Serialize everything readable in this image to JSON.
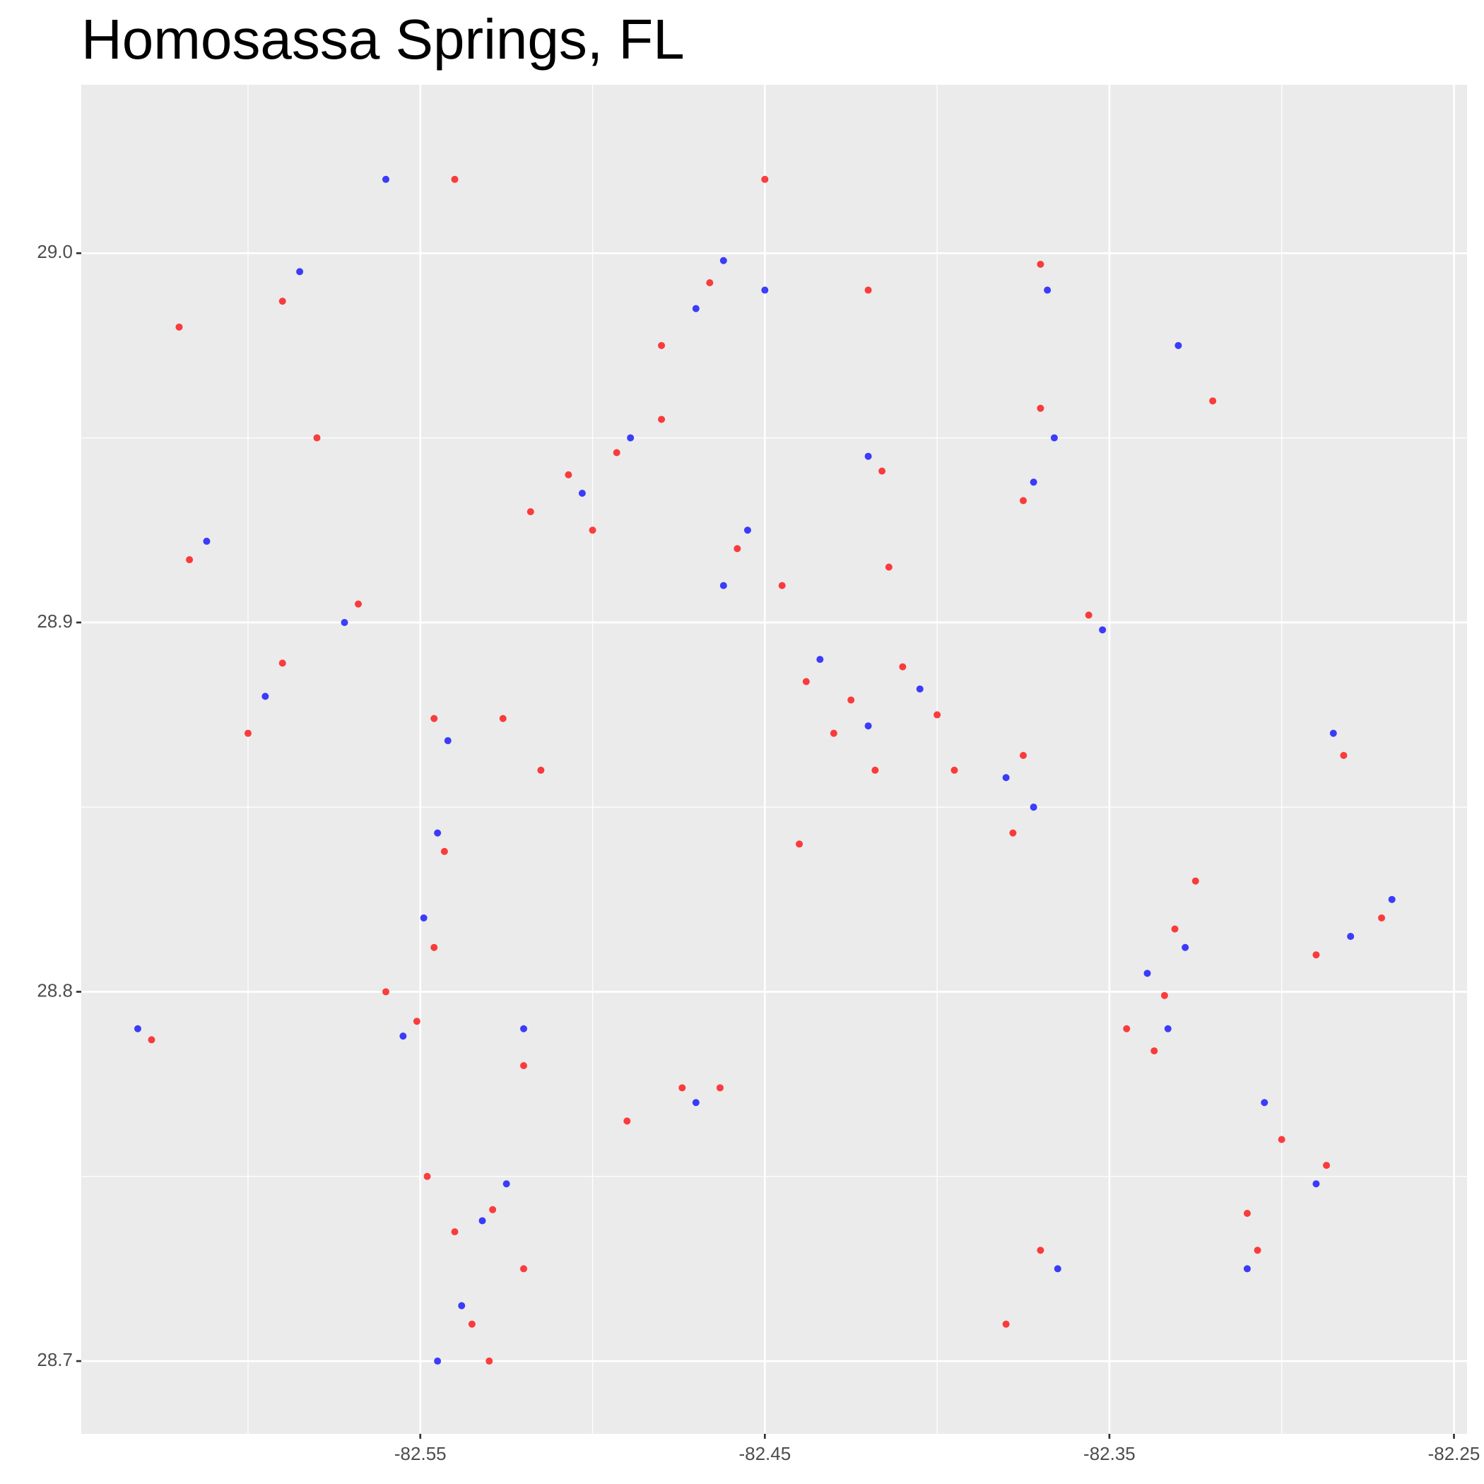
{
  "chart_data": {
    "type": "scatter",
    "title": "Homosassa Springs, FL",
    "xlim": [
      -82.6484,
      -82.2462
    ],
    "ylim": [
      28.6803,
      29.0456
    ],
    "xticks": [
      -82.55,
      -82.45,
      -82.35,
      -82.25
    ],
    "yticks": [
      {
        "value": 29,
        "label": "29.0"
      },
      28.9,
      28.8,
      28.7
    ],
    "x_minor_grid": [
      -82.6,
      -82.5,
      -82.4,
      -82.3
    ],
    "y_minor_grid": [
      28.95,
      28.85,
      28.75
    ],
    "grid": true,
    "series": [
      {
        "color": "#ff0000",
        "x": [
          -82.466,
          -82.48,
          -82.458,
          -82.445,
          -82.438,
          -82.425,
          -82.43,
          -82.41,
          -82.4,
          -82.418,
          -82.334,
          -82.331,
          -82.337,
          -82.345,
          -82.325,
          -82.529,
          -82.54,
          -82.535,
          -82.52,
          -82.548,
          -82.543,
          -82.546,
          -82.551,
          -82.56,
          -82.507,
          -82.493,
          -82.518,
          -82.5,
          -82.48,
          -82.59,
          -82.6,
          -82.628,
          -82.617,
          -82.59,
          -82.62,
          -82.375,
          -82.378,
          -82.37,
          -82.37,
          -82.375,
          -82.282,
          -82.271,
          -82.29,
          -82.287,
          -82.307,
          -82.37,
          -82.38,
          -82.474,
          -82.463,
          -82.49,
          -82.416,
          -82.414,
          -82.546,
          -82.526,
          -82.568,
          -82.356,
          -82.31,
          -82.3,
          -82.44,
          -82.52,
          -82.515,
          -82.45,
          -82.54,
          -82.58,
          -82.42,
          -82.32,
          -82.395,
          -82.53
        ],
        "y": [
          28.992,
          28.975,
          28.92,
          28.91,
          28.884,
          28.879,
          28.87,
          28.888,
          28.875,
          28.86,
          28.799,
          28.817,
          28.784,
          28.79,
          28.83,
          28.741,
          28.735,
          28.71,
          28.725,
          28.75,
          28.838,
          28.812,
          28.792,
          28.8,
          28.94,
          28.946,
          28.93,
          28.925,
          28.955,
          28.889,
          28.87,
          28.787,
          28.917,
          28.987,
          28.98,
          28.864,
          28.843,
          28.997,
          28.958,
          28.933,
          28.864,
          28.82,
          28.81,
          28.753,
          28.73,
          28.73,
          28.71,
          28.774,
          28.774,
          28.765,
          28.941,
          28.915,
          28.874,
          28.874,
          28.905,
          28.902,
          28.74,
          28.76,
          28.84,
          28.78,
          28.86,
          29.02,
          29.02,
          28.95,
          28.99,
          28.96,
          28.86,
          28.7
        ]
      },
      {
        "color": "#0000ff",
        "x": [
          -82.462,
          -82.47,
          -82.455,
          -82.462,
          -82.434,
          -82.42,
          -82.339,
          -82.333,
          -82.328,
          -82.532,
          -82.538,
          -82.525,
          -82.545,
          -82.549,
          -82.555,
          -82.503,
          -82.489,
          -82.595,
          -82.632,
          -82.612,
          -82.585,
          -82.38,
          -82.372,
          -82.368,
          -82.366,
          -82.372,
          -82.285,
          -82.268,
          -82.29,
          -82.31,
          -82.365,
          -82.47,
          -82.42,
          -82.542,
          -82.572,
          -82.352,
          -82.28,
          -82.52,
          -82.56,
          -82.45,
          -82.33,
          -82.545,
          -82.305,
          -82.405
        ],
        "y": [
          28.998,
          28.985,
          28.925,
          28.91,
          28.89,
          28.872,
          28.805,
          28.79,
          28.812,
          28.738,
          28.715,
          28.748,
          28.843,
          28.82,
          28.788,
          28.935,
          28.95,
          28.88,
          28.79,
          28.922,
          28.995,
          28.858,
          28.85,
          28.99,
          28.95,
          28.938,
          28.87,
          28.825,
          28.748,
          28.725,
          28.725,
          28.77,
          28.945,
          28.868,
          28.9,
          28.898,
          28.815,
          28.79,
          29.02,
          28.99,
          28.975,
          28.7,
          28.77,
          28.882
        ]
      }
    ]
  }
}
